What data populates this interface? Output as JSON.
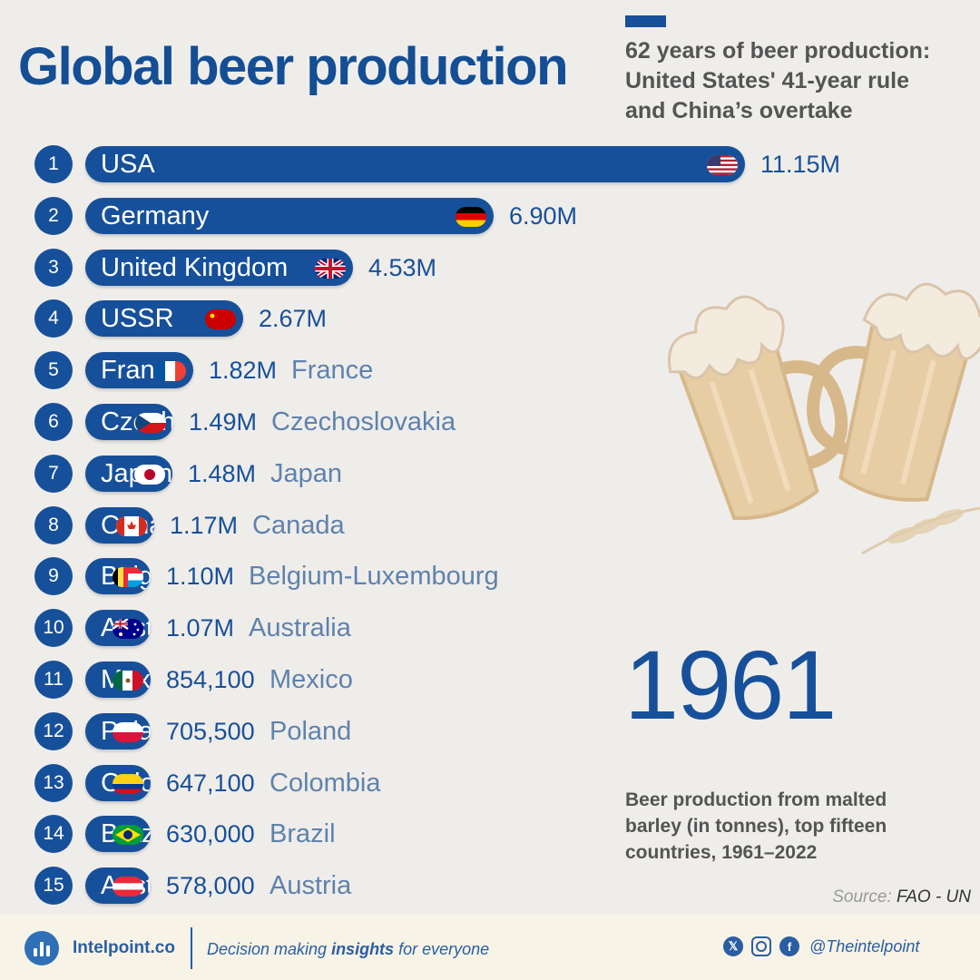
{
  "header": {
    "title": "Global beer production",
    "subtitle_lines": [
      "62 years of beer production:",
      "United States' 41-year rule",
      "and China’s overtake"
    ]
  },
  "year": "1961",
  "description_lines": [
    "Beer production from malted",
    "barley (in tonnes), top fifteen",
    "countries, 1961–2022"
  ],
  "source": {
    "label": "Source:",
    "value": "FAO - UN"
  },
  "footer": {
    "brand": "Intelpoint.co",
    "tagline_pre": "Decision making ",
    "tagline_bold": "insights",
    "tagline_post": " for everyone",
    "handle": "@Theintelpoint",
    "social_icons": [
      "x-icon",
      "instagram-icon",
      "facebook-icon"
    ]
  },
  "colors": {
    "bar": "#17509a",
    "title": "#144e94",
    "value": "#17509a",
    "country": "#5e82ae",
    "background": "#efedea"
  },
  "chart_data": {
    "type": "bar",
    "orientation": "horizontal",
    "title": "Global beer production",
    "unit": "tonnes",
    "xlim": [
      0,
      11150000
    ],
    "categories": [
      "USA",
      "Germany",
      "United Kingdom",
      "USSR",
      "France",
      "Czechoslovakia",
      "Japan",
      "Canada",
      "Belgium-Luxembourg",
      "Australia",
      "Mexico",
      "Poland",
      "Colombia",
      "Brazil",
      "Austria"
    ],
    "values": [
      11150000,
      6900000,
      4530000,
      2670000,
      1820000,
      1490000,
      1480000,
      1170000,
      1100000,
      1070000,
      854100,
      705500,
      647100,
      630000,
      578000
    ],
    "value_labels": [
      "11.15M",
      "6.90M",
      "4.53M",
      "2.67M",
      "1.82M",
      "1.49M",
      "1.48M",
      "1.17M",
      "1.10M",
      "1.07M",
      "854,100",
      "705,500",
      "647,100",
      "630,000",
      "578,000"
    ],
    "ranks": [
      "1",
      "2",
      "3",
      "4",
      "5",
      "6",
      "7",
      "8",
      "9",
      "10",
      "11",
      "12",
      "13",
      "14",
      "15"
    ],
    "bar_labels": [
      "USA",
      "Germany",
      "United Kingdom",
      "USSR",
      "France",
      "Czechoslovakia",
      "Japan",
      "Canada",
      "Belgium-Luxembourg",
      "Australia",
      "Mexico",
      "Poland",
      "Colombia",
      "Brazil",
      "Austria"
    ],
    "outside_labels": [
      "",
      "",
      "",
      "",
      "France",
      "Czechoslovakia",
      "Japan",
      "Canada",
      "Belgium-Luxembourg",
      "Australia",
      "Mexico",
      "Poland",
      "Colombia",
      "Brazil",
      "Austria"
    ],
    "flags": [
      "usa-flag",
      "germany-flag",
      "uk-flag",
      "ussr-flag",
      "france-flag",
      "czechoslovakia-flag",
      "japan-flag",
      "canada-flag",
      "belgium-luxembourg-flag",
      "australia-flag",
      "mexico-flag",
      "poland-flag",
      "colombia-flag",
      "brazil-flag",
      "austria-flag"
    ]
  }
}
